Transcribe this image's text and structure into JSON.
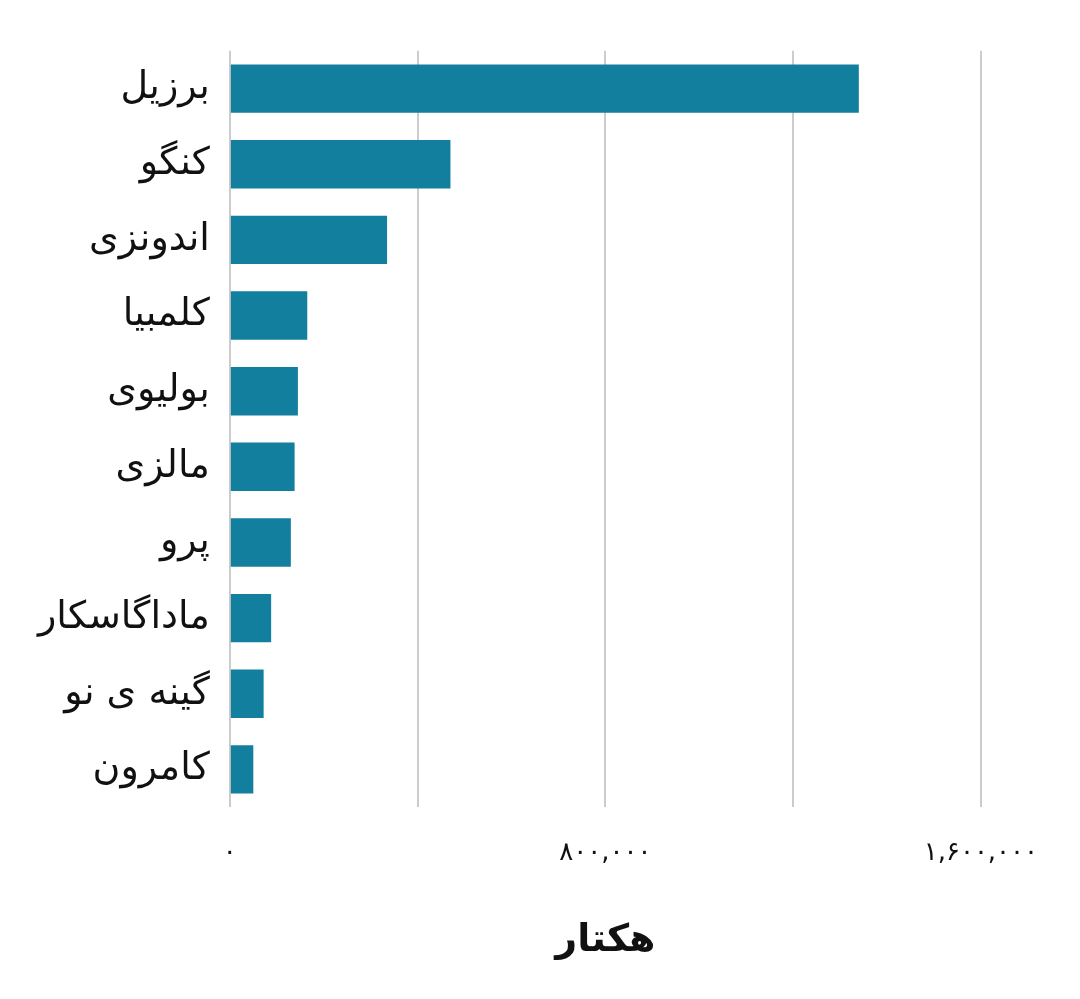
{
  "chart_data": {
    "type": "bar",
    "orientation": "horizontal",
    "xlabel": "هکتار",
    "categories": [
      "برزیل",
      "کنگو",
      "اندونزی",
      "کلمبیا",
      "بولیوی",
      "مالزی",
      "پرو",
      "ماداگاسکار",
      "گینه ی نو",
      "کامرون"
    ],
    "values": [
      1340000,
      470000,
      335000,
      165000,
      145000,
      138000,
      130000,
      88000,
      72000,
      50000
    ],
    "color": "#137f9e",
    "xlim": [
      0,
      1600000
    ],
    "xticks": [
      {
        "value": 0,
        "label": "۰"
      },
      {
        "value": 400000,
        "label": null
      },
      {
        "value": 800000,
        "label": "۸۰۰,۰۰۰"
      },
      {
        "value": 1200000,
        "label": null
      },
      {
        "value": 1600000,
        "label": "۱,۶۰۰,۰۰۰"
      }
    ],
    "grid": "x",
    "legend": false
  }
}
